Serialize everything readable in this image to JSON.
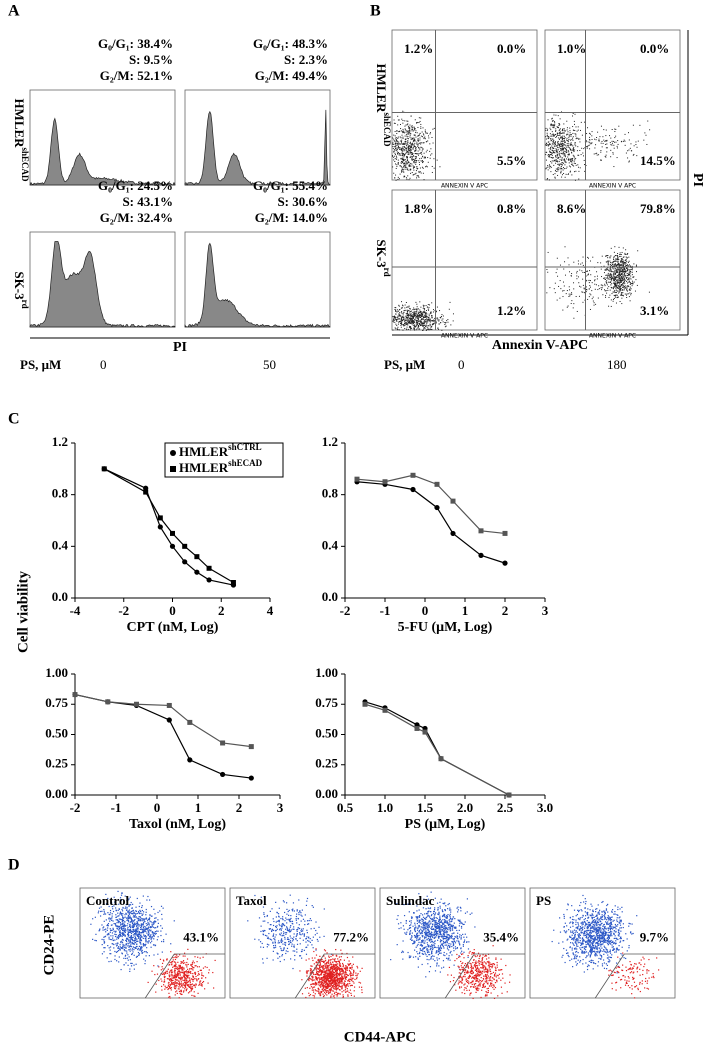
{
  "panel_a": {
    "letter": "A",
    "row_labels": [
      {
        "main": "HMLER",
        "sup": "shECAD"
      },
      {
        "main": "SK-3",
        "sup": "rd"
      }
    ],
    "stats": [
      [
        "G₀/G₁: 38.4%",
        "S:  9.5%",
        "G₂/M: 52.1%"
      ],
      [
        "G₀/G₁: 48.3%",
        "S:  2.3%",
        "G₂/M: 49.4%"
      ],
      [
        "G₀/G₁: 24.5%",
        "S: 43.1%",
        "G₂/M: 32.4%"
      ],
      [
        "G₀/G₁: 55.4%",
        "S: 30.6%",
        "G₂/M: 14.0%"
      ]
    ],
    "axis_label": "PI",
    "dose_label": "PS, μM",
    "doses": [
      "0",
      "50"
    ]
  },
  "panel_b": {
    "letter": "B",
    "row_labels": [
      {
        "main": "HMLER",
        "sup": "shECAD"
      },
      {
        "main": "SK-3",
        "sup": "rd"
      }
    ],
    "quadrants": [
      [
        "1.2%",
        "0.0%",
        "5.5%"
      ],
      [
        "1.0%",
        "0.0%",
        "14.5%"
      ],
      [
        "1.8%",
        "0.8%",
        "1.2%"
      ],
      [
        "8.6%",
        "79.8%",
        "3.1%"
      ]
    ],
    "plot_axis": "ANNEXIN V APC",
    "y_label": "PI",
    "x_label": "Annexin V-APC",
    "dose_label": "PS, μM",
    "doses": [
      "0",
      "180"
    ]
  },
  "panel_c": {
    "letter": "C",
    "y_label": "Cell viability"
  },
  "chart_data": [
    {
      "type": "line",
      "x_label": "CPT (nM, Log)",
      "xlim": [
        -4,
        4
      ],
      "xticks": [
        -4,
        -2,
        0,
        2,
        4
      ],
      "ylim": [
        0,
        1.2
      ],
      "yticks": [
        {
          "value": 0,
          "label": "0.0"
        },
        0.4,
        0.8,
        1.2
      ],
      "x": [
        -2.8,
        -1.1,
        -0.5,
        0,
        0.5,
        1,
        1.5,
        2.5
      ],
      "series": [
        {
          "name": "HMLER",
          "name_sup": "shCTRL",
          "marker": "circle",
          "color": "#000000",
          "values": [
            1.0,
            0.85,
            0.55,
            0.4,
            0.28,
            0.2,
            0.14,
            0.1
          ]
        },
        {
          "name": "HMLER",
          "name_sup": "shECAD",
          "marker": "square",
          "color": "#000000",
          "values": [
            1.0,
            0.82,
            0.62,
            0.5,
            0.4,
            0.32,
            0.23,
            0.12
          ]
        }
      ]
    },
    {
      "type": "line",
      "x_label": "5-FU (μM, Log)",
      "xlim": [
        -2,
        3
      ],
      "xticks": [
        -2,
        -1,
        0,
        1,
        2,
        3
      ],
      "ylim": [
        0,
        1.2
      ],
      "yticks": [
        {
          "value": 0,
          "label": "0.0"
        },
        0.4,
        0.8,
        1.2
      ],
      "x": [
        -1.7,
        -1,
        -0.3,
        0.3,
        0.7,
        1.4,
        2
      ],
      "series": [
        {
          "marker": "circle",
          "color": "#000000",
          "values": [
            0.9,
            0.88,
            0.84,
            0.7,
            0.5,
            0.33,
            0.27
          ]
        },
        {
          "marker": "square",
          "color": "#555555",
          "values": [
            0.92,
            0.9,
            0.95,
            0.88,
            0.75,
            0.52,
            0.5
          ]
        }
      ]
    },
    {
      "type": "line",
      "x_label": "Taxol (nM, Log)",
      "xlim": [
        -2,
        3
      ],
      "xticks": [
        -2,
        -1,
        0,
        1,
        2,
        3
      ],
      "ylim": [
        0,
        1
      ],
      "yticks": [
        {
          "value": 0,
          "label": "0.00"
        },
        0.25,
        {
          "value": 0.5,
          "label": "0.50"
        },
        0.75,
        {
          "value": 1,
          "label": "1.00"
        }
      ],
      "x": [
        -2,
        -1.2,
        -0.5,
        0.3,
        0.8,
        1.6,
        2.3
      ],
      "series": [
        {
          "marker": "circle",
          "color": "#000000",
          "values": [
            0.83,
            0.77,
            0.74,
            0.62,
            0.29,
            0.17,
            0.14
          ]
        },
        {
          "marker": "square",
          "color": "#555555",
          "values": [
            0.83,
            0.77,
            0.75,
            0.74,
            0.6,
            0.43,
            0.4
          ]
        }
      ]
    },
    {
      "type": "line",
      "x_label": "PS (μM, Log)",
      "xlim": [
        0.5,
        3
      ],
      "xticks": [
        0.5,
        {
          "value": 1,
          "label": "1.0"
        },
        1.5,
        {
          "value": 2,
          "label": "2.0"
        },
        2.5,
        {
          "value": 3,
          "label": "3.0"
        }
      ],
      "ylim": [
        0,
        1
      ],
      "yticks": [
        {
          "value": 0,
          "label": "0.00"
        },
        0.25,
        {
          "value": 0.5,
          "label": "0.50"
        },
        0.75,
        {
          "value": 1,
          "label": "1.00"
        }
      ],
      "x": [
        0.75,
        1,
        1.4,
        1.5,
        1.7,
        2.55
      ],
      "series": [
        {
          "marker": "circle",
          "color": "#000000",
          "values": [
            0.77,
            0.72,
            0.58,
            0.55,
            0.3,
            0.0
          ]
        },
        {
          "marker": "square",
          "color": "#555555",
          "values": [
            0.75,
            0.7,
            0.55,
            0.52,
            0.3,
            0.0
          ]
        }
      ]
    }
  ],
  "panel_d": {
    "letter": "D",
    "treatments": [
      "Control",
      "Taxol",
      "Sulindac",
      "PS"
    ],
    "percentages": [
      "43.1%",
      "77.2%",
      "35.4%",
      "9.7%"
    ],
    "y_label": "CD24-PE",
    "x_label": "CD44-APC"
  }
}
